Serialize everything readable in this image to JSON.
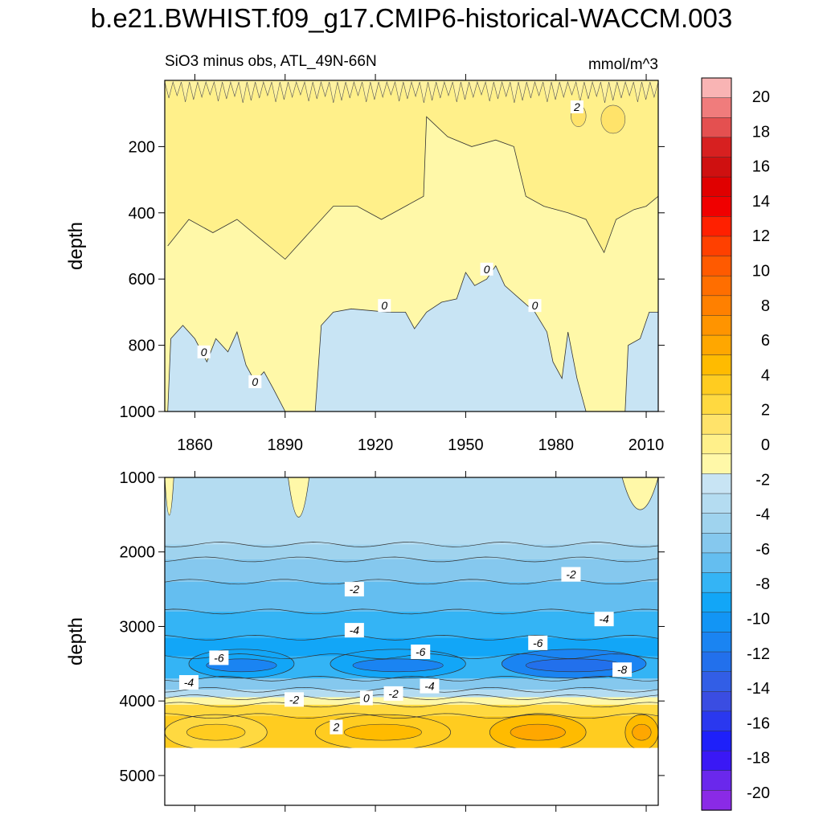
{
  "title": "b.e21.BWHIST.f09_g17.CMIP6-historical-WACCM.003",
  "chart_data": [
    {
      "type": "heatmap",
      "panel": "top",
      "subtitle": "SiO3 minus obs, ATL_49N-66N",
      "units": "mmol/m^3",
      "xlabel": "",
      "ylabel": "depth",
      "xlim": [
        1850,
        2014
      ],
      "ylim": [
        0,
        1000
      ],
      "y_inverted": true,
      "xticks": [
        1860,
        1890,
        1920,
        1950,
        1980,
        2010
      ],
      "yticks": [
        200,
        400,
        600,
        800,
        1000
      ],
      "zero_contour_depth": [
        {
          "year": 1851,
          "depth": 1000
        },
        {
          "year": 1852,
          "depth": 780
        },
        {
          "year": 1856,
          "depth": 740
        },
        {
          "year": 1860,
          "depth": 780
        },
        {
          "year": 1864,
          "depth": 850
        },
        {
          "year": 1867,
          "depth": 780
        },
        {
          "year": 1871,
          "depth": 820
        },
        {
          "year": 1874,
          "depth": 760
        },
        {
          "year": 1877,
          "depth": 860
        },
        {
          "year": 1880,
          "depth": 910
        },
        {
          "year": 1883,
          "depth": 880
        },
        {
          "year": 1886,
          "depth": 930
        },
        {
          "year": 1890,
          "depth": 1000
        },
        {
          "year": 1900,
          "depth": 1000
        },
        {
          "year": 1902,
          "depth": 740
        },
        {
          "year": 1906,
          "depth": 700
        },
        {
          "year": 1912,
          "depth": 690
        },
        {
          "year": 1918,
          "depth": 695
        },
        {
          "year": 1924,
          "depth": 700
        },
        {
          "year": 1930,
          "depth": 700
        },
        {
          "year": 1933,
          "depth": 750
        },
        {
          "year": 1937,
          "depth": 700
        },
        {
          "year": 1942,
          "depth": 670
        },
        {
          "year": 1947,
          "depth": 660
        },
        {
          "year": 1950,
          "depth": 580
        },
        {
          "year": 1953,
          "depth": 620
        },
        {
          "year": 1957,
          "depth": 600
        },
        {
          "year": 1960,
          "depth": 560
        },
        {
          "year": 1963,
          "depth": 620
        },
        {
          "year": 1968,
          "depth": 660
        },
        {
          "year": 1973,
          "depth": 700
        },
        {
          "year": 1977,
          "depth": 760
        },
        {
          "year": 1979,
          "depth": 850
        },
        {
          "year": 1982,
          "depth": 900
        },
        {
          "year": 1984,
          "depth": 760
        },
        {
          "year": 1987,
          "depth": 900
        },
        {
          "year": 1990,
          "depth": 1000
        },
        {
          "year": 2003,
          "depth": 1000
        },
        {
          "year": 2004,
          "depth": 800
        },
        {
          "year": 2008,
          "depth": 780
        },
        {
          "year": 2011,
          "depth": 700
        },
        {
          "year": 2014,
          "depth": 700
        }
      ],
      "two_contour_depth": [
        {
          "year": 1851,
          "depth": 500
        },
        {
          "year": 1858,
          "depth": 420
        },
        {
          "year": 1866,
          "depth": 460
        },
        {
          "year": 1874,
          "depth": 420
        },
        {
          "year": 1882,
          "depth": 480
        },
        {
          "year": 1890,
          "depth": 540
        },
        {
          "year": 1898,
          "depth": 460
        },
        {
          "year": 1906,
          "depth": 380
        },
        {
          "year": 1914,
          "depth": 380
        },
        {
          "year": 1922,
          "depth": 420
        },
        {
          "year": 1930,
          "depth": 380
        },
        {
          "year": 1936,
          "depth": 350
        },
        {
          "year": 1937,
          "depth": 110
        },
        {
          "year": 1944,
          "depth": 170
        },
        {
          "year": 1952,
          "depth": 200
        },
        {
          "year": 1960,
          "depth": 180
        },
        {
          "year": 1966,
          "depth": 200
        },
        {
          "year": 1970,
          "depth": 350
        },
        {
          "year": 1976,
          "depth": 380
        },
        {
          "year": 1984,
          "depth": 400
        },
        {
          "year": 1990,
          "depth": 420
        },
        {
          "year": 1996,
          "depth": 520
        },
        {
          "year": 2000,
          "depth": 420
        },
        {
          "year": 2006,
          "depth": 390
        },
        {
          "year": 2010,
          "depth": 380
        },
        {
          "year": 2014,
          "depth": 350
        }
      ],
      "contour_labels": [
        {
          "text": "2",
          "year": 1987,
          "depth": 80
        },
        {
          "text": "0",
          "year": 1957,
          "depth": 570
        },
        {
          "text": "0",
          "year": 1923,
          "depth": 680
        },
        {
          "text": "0",
          "year": 1973,
          "depth": 680
        },
        {
          "text": "0",
          "year": 1863,
          "depth": 820
        },
        {
          "text": "0",
          "year": 1880,
          "depth": 910
        }
      ]
    },
    {
      "type": "heatmap",
      "panel": "bottom",
      "xlabel": "",
      "ylabel": "depth",
      "xlim": [
        1850,
        2014
      ],
      "ylim": [
        1000,
        5400
      ],
      "y_inverted": true,
      "data_max_depth": 4630,
      "yticks": [
        1000,
        2000,
        3000,
        4000,
        5000
      ],
      "xticks": [
        1860,
        1890,
        1920,
        1950,
        1980,
        2010
      ],
      "bands": [
        {
          "depth": 1000,
          "value": -0.5
        },
        {
          "depth": 1900,
          "value": -0.5
        },
        {
          "depth": 2100,
          "value": -1.5
        },
        {
          "depth": 2400,
          "value": -2.5
        },
        {
          "depth": 2800,
          "value": -3.5
        },
        {
          "depth": 3150,
          "value": -4.5
        },
        {
          "depth": 3400,
          "value": -6.0
        },
        {
          "depth": 3700,
          "value": -5.0
        },
        {
          "depth": 3850,
          "value": -3.0
        },
        {
          "depth": 3950,
          "value": -1.0
        },
        {
          "depth": 4050,
          "value": 0.5
        },
        {
          "depth": 4200,
          "value": 3.0
        },
        {
          "depth": 4630,
          "value": 4.0
        }
      ],
      "minimum_cores": [
        {
          "year_start": 1858,
          "year_end": 1893,
          "value": -7
        },
        {
          "year_start": 1905,
          "year_end": 1950,
          "value": -7
        },
        {
          "year_start": 1962,
          "year_end": 2010,
          "value": -8
        }
      ],
      "positive_cores": [
        {
          "year_start": 1850,
          "year_end": 1884,
          "value": 4
        },
        {
          "year_start": 1900,
          "year_end": 1945,
          "value": 5
        },
        {
          "year_start": 1958,
          "year_end": 1990,
          "value": 6
        },
        {
          "year_start": 2003,
          "year_end": 2014,
          "value": 6
        }
      ],
      "contour_labels": [
        {
          "text": "-2",
          "year": 1913,
          "depth": 2500
        },
        {
          "text": "-2",
          "year": 1985,
          "depth": 2300
        },
        {
          "text": "-4",
          "year": 1913,
          "depth": 3050
        },
        {
          "text": "-4",
          "year": 1996,
          "depth": 2900
        },
        {
          "text": "-6",
          "year": 1868,
          "depth": 3420
        },
        {
          "text": "-6",
          "year": 1935,
          "depth": 3340
        },
        {
          "text": "-6",
          "year": 1974,
          "depth": 3220
        },
        {
          "text": "-8",
          "year": 2002,
          "depth": 3580
        },
        {
          "text": "-4",
          "year": 1858,
          "depth": 3750
        },
        {
          "text": "-2",
          "year": 1893,
          "depth": 3980
        },
        {
          "text": "0",
          "year": 1917,
          "depth": 3960
        },
        {
          "text": "-2",
          "year": 1926,
          "depth": 3900
        },
        {
          "text": "-4",
          "year": 1938,
          "depth": 3800
        },
        {
          "text": "2",
          "year": 1907,
          "depth": 4350
        }
      ]
    }
  ],
  "colorbar": {
    "labels": [
      "20",
      "18",
      "16",
      "14",
      "12",
      "10",
      "8",
      "6",
      "4",
      "2",
      "0",
      "-2",
      "-4",
      "-6",
      "-8",
      "-10",
      "-12",
      "-14",
      "-16",
      "-18",
      "-20"
    ],
    "colors": [
      "#f9b4b4",
      "#f07c7c",
      "#e45050",
      "#d72020",
      "#cf1010",
      "#e00000",
      "#f00000",
      "#ff2000",
      "#ff4000",
      "#ff5a00",
      "#ff6e00",
      "#ff8000",
      "#ff9400",
      "#ffa700",
      "#ffbb00",
      "#ffcc20",
      "#ffd940",
      "#ffe36a",
      "#fff08a",
      "#fff8a8",
      "#c8e4f4",
      "#b4dcf1",
      "#9fd3ee",
      "#85c8ee",
      "#64bef0",
      "#34b4f5",
      "#12a6f7",
      "#1295f5",
      "#1a84f2",
      "#2270ec",
      "#325ee6",
      "#3a4de2",
      "#2a38ef",
      "#1e20fa",
      "#3a18f5",
      "#6a28ec",
      "#8a2ae6"
    ]
  },
  "palette": {
    "neg_light": "#c8e4f4",
    "pos_light": "#fff8a8",
    "pos_mid": "#fff08a"
  }
}
